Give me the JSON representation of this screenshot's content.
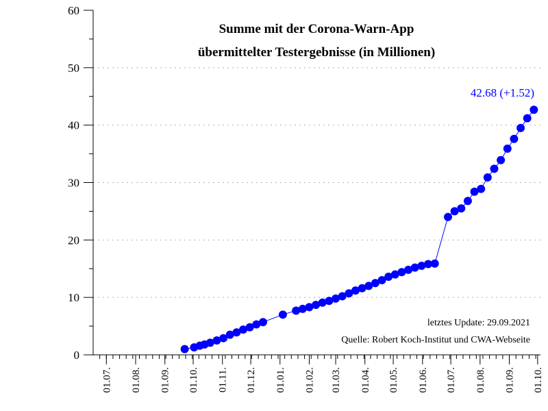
{
  "chart_data": {
    "type": "line",
    "title_lines": [
      "Summe mit der Corona-Warn-App",
      "übermittelter Testergebnisse (in Millionen)"
    ],
    "ylim": [
      0,
      60
    ],
    "yticks": [
      0,
      10,
      20,
      30,
      40,
      50,
      60
    ],
    "grid_y": true,
    "x_tick_labels": [
      "01.07.",
      "01.08.",
      "01.09.",
      "01.10.",
      "01.11.",
      "01.12.",
      "01.01.",
      "01.02.",
      "01.03.",
      "01.04.",
      "01.05.",
      "01.06.",
      "01.07.",
      "01.08.",
      "01.09.",
      "01.10."
    ],
    "x_tick_dates": [
      "2020-07-01",
      "2020-08-01",
      "2020-09-01",
      "2020-10-01",
      "2020-11-01",
      "2020-12-01",
      "2021-01-01",
      "2021-02-01",
      "2021-03-01",
      "2021-04-01",
      "2021-05-01",
      "2021-06-01",
      "2021-07-01",
      "2021-08-01",
      "2021-09-01",
      "2021-10-01"
    ],
    "x_start": "2020-06-17",
    "x_end": "2021-10-04",
    "series": [
      {
        "name": "Summe übermittelter Testergebnisse",
        "color": "#0000ff",
        "points": [
          [
            "2020-09-22",
            1.0
          ],
          [
            "2020-10-02",
            1.3
          ],
          [
            "2020-10-08",
            1.6
          ],
          [
            "2020-10-13",
            1.8
          ],
          [
            "2020-10-19",
            2.1
          ],
          [
            "2020-10-26",
            2.5
          ],
          [
            "2020-11-02",
            2.9
          ],
          [
            "2020-11-09",
            3.5
          ],
          [
            "2020-11-16",
            3.9
          ],
          [
            "2020-11-23",
            4.4
          ],
          [
            "2020-11-30",
            4.8
          ],
          [
            "2020-12-07",
            5.3
          ],
          [
            "2020-12-14",
            5.7
          ],
          [
            "2021-01-04",
            7.0
          ],
          [
            "2021-01-18",
            7.7
          ],
          [
            "2021-01-25",
            8.0
          ],
          [
            "2021-02-01",
            8.3
          ],
          [
            "2021-02-08",
            8.7
          ],
          [
            "2021-02-15",
            9.1
          ],
          [
            "2021-02-22",
            9.4
          ],
          [
            "2021-03-01",
            9.8
          ],
          [
            "2021-03-08",
            10.2
          ],
          [
            "2021-03-15",
            10.7
          ],
          [
            "2021-03-22",
            11.2
          ],
          [
            "2021-03-29",
            11.6
          ],
          [
            "2021-04-05",
            12.0
          ],
          [
            "2021-04-12",
            12.5
          ],
          [
            "2021-04-19",
            13.0
          ],
          [
            "2021-04-26",
            13.6
          ],
          [
            "2021-05-03",
            14.0
          ],
          [
            "2021-05-10",
            14.4
          ],
          [
            "2021-05-17",
            14.8
          ],
          [
            "2021-05-24",
            15.2
          ],
          [
            "2021-05-31",
            15.5
          ],
          [
            "2021-06-07",
            15.8
          ],
          [
            "2021-06-14",
            15.9
          ],
          [
            "2021-06-28",
            24.0
          ],
          [
            "2021-07-05",
            25.0
          ],
          [
            "2021-07-12",
            25.5
          ],
          [
            "2021-07-19",
            26.8
          ],
          [
            "2021-07-26",
            28.4
          ],
          [
            "2021-08-02",
            28.9
          ],
          [
            "2021-08-09",
            30.9
          ],
          [
            "2021-08-16",
            32.4
          ],
          [
            "2021-08-23",
            33.9
          ],
          [
            "2021-08-30",
            35.9
          ],
          [
            "2021-09-06",
            37.6
          ],
          [
            "2021-09-13",
            39.5
          ],
          [
            "2021-09-20",
            41.2
          ],
          [
            "2021-09-27",
            42.68
          ]
        ]
      }
    ],
    "last_value_label": "42.68 (+1.52)",
    "annotations": {
      "update": "letztes Update: 29.09.2021",
      "source": "Quelle: Robert Koch-Institut und CWA-Webseite"
    }
  }
}
